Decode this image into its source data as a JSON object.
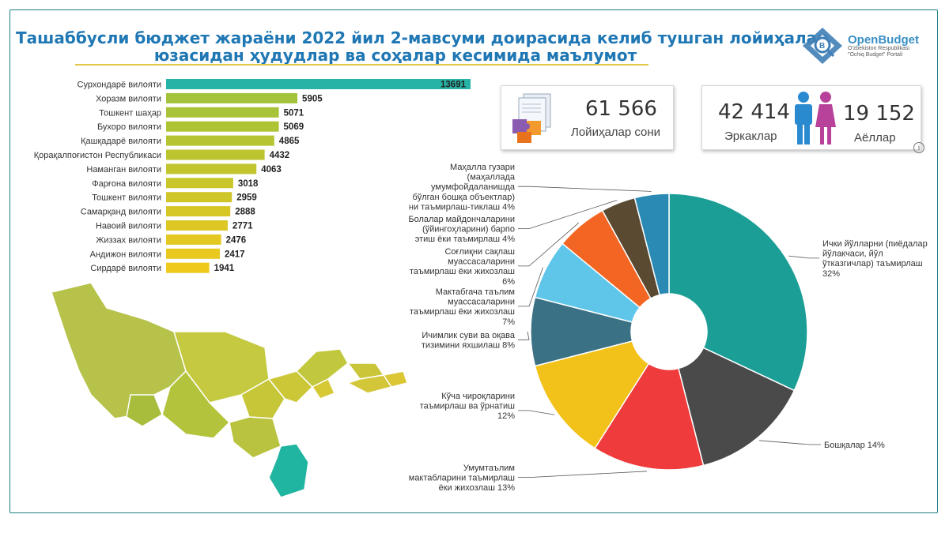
{
  "header": {
    "title_line1": "Ташаббусли бюджет жараёни 2022 йил 2-мавсуми доирасида келиб тушган лойиҳалар",
    "title_line2": "юзасидан ҳудудлар ва соҳалар кесимида маълумот"
  },
  "logo": {
    "name": "OpenBudget",
    "subtitle_line1": "O'zbekiston Respublikasi",
    "subtitle_line2": "\"Ochiq Budget\" Portali"
  },
  "stats": {
    "projects_value": "61 566",
    "projects_label": "Лойиҳалар сони",
    "men_value": "42 414",
    "men_label": "Эркаклар",
    "women_value": "19 152",
    "women_label": "Аёллар"
  },
  "colors": {
    "title": "#1f77b4",
    "top_bar": "#27b3a5",
    "bar_gradient_from": "#9bc23c",
    "bar_gradient_to": "#f0c91d",
    "map_highlight": "#1fb5a0",
    "map_base": "#b7c444"
  },
  "chart_data": [
    {
      "type": "bar",
      "orientation": "horizontal",
      "categories": [
        "Сурхондарё вилояти",
        "Хоразм вилояти",
        "Тошкент шаҳар",
        "Бухоро вилояти",
        "Қашқадарё вилояти",
        "Қорақалпоғистон Республикаси",
        "Наманган вилояти",
        "Фарғона вилояти",
        "Тошкент вилояти",
        "Самарқанд вилояти",
        "Навоий вилояти",
        "Жиззах вилояти",
        "Андижон вилояти",
        "Сирдарё вилояти"
      ],
      "values": [
        13691,
        5905,
        5071,
        5069,
        4865,
        4432,
        4063,
        3018,
        2959,
        2888,
        2771,
        2476,
        2417,
        1941
      ],
      "value_labels": [
        "13691",
        "5905",
        "5071",
        "5069",
        "4865",
        "4432",
        "4063",
        "3018",
        "2959",
        "2888",
        "2771",
        "2476",
        "2417",
        "1941"
      ],
      "xlim": [
        0,
        13691
      ],
      "grid": false,
      "legend": "none"
    },
    {
      "type": "pie",
      "style": "donut",
      "slices": [
        {
          "label": "Ички йўлларни (пиёдалар йўлакчаси, йўл ўтказгичлар) таъмирлаш 32%",
          "label_lines": [
            "Ички йўлларни (пиёдалар",
            "йўлакчаси, йўл",
            "ўтказгичлар) таъмирлаш",
            "32%"
          ],
          "value": 32,
          "color": "#1a9e96"
        },
        {
          "label": "Бошқалар 14%",
          "label_lines": [
            "Бошқалар 14%"
          ],
          "value": 14,
          "color": "#4a4a4a"
        },
        {
          "label": "Умумтаълим мактабларини таъмирлаш ёки жихозлаш 13%",
          "label_lines": [
            "Умумтаълим",
            "мактабларини таъмирлаш",
            "ёки жихозлаш 13%"
          ],
          "value": 13,
          "color": "#ef3b3b"
        },
        {
          "label": "Кўча чироқларини таъмирлаш ва ўрнатиш 12%",
          "label_lines": [
            "Кўча чироқларини",
            "таъмирлаш ва ўрнатиш",
            "",
            "12%"
          ],
          "value": 12,
          "color": "#f2c21a"
        },
        {
          "label": "Ичимлик суви ва оқава тизимини яхшилаш 8%",
          "label_lines": [
            "Ичимлик суви ва оқава",
            "тизимини яхшилаш 8%"
          ],
          "value": 8,
          "color": "#3b7184"
        },
        {
          "label": "Мактабгача таълим муассасаларини таъмирлаш ёки жихозлаш 7%",
          "label_lines": [
            "Мактабгача таълим",
            "муассасаларини",
            "таъмирлаш ёки жихозлаш",
            "7%"
          ],
          "value": 7,
          "color": "#5fc6ea"
        },
        {
          "label": "Соғлиқни сақлаш муассасаларини таъмирлаш ёки жихозлаш 6%",
          "label_lines": [
            "Соғлиқни сақлаш",
            "муассасаларини",
            "таъмирлаш ёки жихозлаш",
            "6%"
          ],
          "value": 6,
          "color": "#f26522"
        },
        {
          "label": "Болалар майдончаларини (ўйингоҳларини) барпо этиш ёки таъмирлаш 4%",
          "label_lines": [
            "Болалар майдончаларини",
            "(ўйингоҳларини) барпо",
            "этиш ёки таъмирлаш 4%"
          ],
          "value": 4,
          "color": "#5a4a32"
        },
        {
          "label": "Маҳалла гузари (маҳаллада умумфойдаланишда бўлган бошқа объектлар) ни таъмирлаш-тиклаш 4%",
          "label_lines": [
            "Маҳалла гузари",
            "(маҳаллада",
            "умумфойдаланишда",
            "бўлган бошқа объектлар)",
            "ни таъмирлаш-тиклаш 4%"
          ],
          "value": 4,
          "color": "#2a8ab4"
        }
      ],
      "legend": "callouts"
    }
  ]
}
